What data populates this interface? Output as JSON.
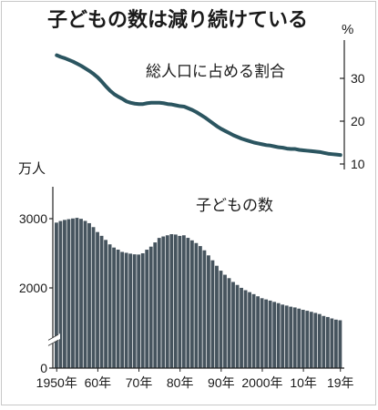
{
  "chart_data": {
    "type": "bar",
    "title": "子どもの数は減り続けている",
    "x": [
      1950,
      1951,
      1952,
      1953,
      1954,
      1955,
      1956,
      1957,
      1958,
      1959,
      1960,
      1961,
      1962,
      1963,
      1964,
      1965,
      1966,
      1967,
      1968,
      1969,
      1970,
      1971,
      1972,
      1973,
      1974,
      1975,
      1976,
      1977,
      1978,
      1979,
      1980,
      1981,
      1982,
      1983,
      1984,
      1985,
      1986,
      1987,
      1988,
      1989,
      1990,
      1991,
      1992,
      1993,
      1994,
      1995,
      1996,
      1997,
      1998,
      1999,
      2000,
      2001,
      2002,
      2003,
      2004,
      2005,
      2006,
      2007,
      2008,
      2009,
      2010,
      2011,
      2012,
      2013,
      2014,
      2015,
      2016,
      2017,
      2018,
      2019
    ],
    "x_tick_labels": [
      {
        "value": 1950,
        "label": "1950年"
      },
      {
        "value": 1960,
        "label": "60年"
      },
      {
        "value": 1970,
        "label": "70年"
      },
      {
        "value": 1980,
        "label": "80年"
      },
      {
        "value": 1990,
        "label": "90年"
      },
      {
        "value": 2000,
        "label": "2000年"
      },
      {
        "value": 2010,
        "label": "10年"
      },
      {
        "value": 2019,
        "label": "19年"
      }
    ],
    "series": [
      {
        "name": "子どもの数",
        "type": "bar",
        "unit": "万人",
        "axis": "left",
        "values": [
          2943,
          2966,
          2982,
          2993,
          3003,
          3012,
          2998,
          2968,
          2935,
          2878,
          2807,
          2752,
          2693,
          2629,
          2583,
          2553,
          2520,
          2507,
          2495,
          2485,
          2482,
          2500,
          2552,
          2596,
          2657,
          2722,
          2743,
          2760,
          2776,
          2771,
          2751,
          2760,
          2723,
          2687,
          2648,
          2604,
          2543,
          2470,
          2399,
          2320,
          2249,
          2190,
          2141,
          2086,
          2043,
          2001,
          1967,
          1939,
          1910,
          1879,
          1851,
          1834,
          1817,
          1798,
          1780,
          1759,
          1745,
          1729,
          1718,
          1701,
          1684,
          1670,
          1655,
          1639,
          1623,
          1595,
          1580,
          1559,
          1542,
          1533
        ]
      },
      {
        "name": "総人口に占める割合",
        "type": "line",
        "unit": "%",
        "axis": "right",
        "values": [
          35.4,
          35.0,
          34.7,
          34.3,
          33.9,
          33.4,
          32.9,
          32.3,
          31.7,
          31.0,
          30.2,
          29.2,
          28.1,
          27.1,
          26.3,
          25.7,
          25.2,
          24.6,
          24.3,
          24.1,
          24.0,
          24.0,
          24.2,
          24.3,
          24.3,
          24.3,
          24.2,
          24.0,
          23.9,
          23.7,
          23.5,
          23.4,
          23.0,
          22.6,
          22.1,
          21.5,
          20.9,
          20.2,
          19.5,
          18.8,
          18.2,
          17.7,
          17.2,
          16.7,
          16.3,
          15.9,
          15.6,
          15.3,
          15.0,
          14.8,
          14.6,
          14.4,
          14.3,
          14.1,
          13.9,
          13.8,
          13.6,
          13.5,
          13.5,
          13.3,
          13.2,
          13.1,
          13.0,
          12.9,
          12.8,
          12.6,
          12.4,
          12.3,
          12.2,
          12.1
        ]
      }
    ],
    "y_left": {
      "unit": "万人",
      "ticks": [
        {
          "value": 0,
          "label": "0"
        },
        {
          "value": 2000,
          "label": "2000"
        },
        {
          "value": 3000,
          "label": "3000"
        }
      ],
      "ylim": [
        0,
        3450
      ],
      "axis_break": true
    },
    "y_right": {
      "unit": "%",
      "ticks": [
        {
          "value": 10,
          "label": "10"
        },
        {
          "value": 20,
          "label": "20"
        },
        {
          "value": 30,
          "label": "30"
        }
      ],
      "ylim": [
        9.5,
        38
      ]
    },
    "grid": false,
    "colors": {
      "bar": "#46545e",
      "line": "#2b5560",
      "border": "#c8c8c8"
    }
  }
}
